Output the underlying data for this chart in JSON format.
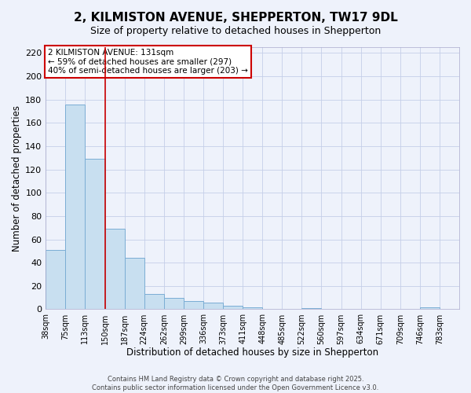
{
  "title": "2, KILMISTON AVENUE, SHEPPERTON, TW17 9DL",
  "subtitle": "Size of property relative to detached houses in Shepperton",
  "xlabel": "Distribution of detached houses by size in Shepperton",
  "ylabel": "Number of detached properties",
  "bar_values": [
    51,
    176,
    129,
    69,
    44,
    13,
    10,
    7,
    6,
    3,
    2,
    0,
    0,
    1,
    0,
    0,
    0,
    0,
    0,
    2,
    0
  ],
  "tick_labels": [
    "38sqm",
    "75sqm",
    "113sqm",
    "150sqm",
    "187sqm",
    "224sqm",
    "262sqm",
    "299sqm",
    "336sqm",
    "373sqm",
    "411sqm",
    "448sqm",
    "485sqm",
    "522sqm",
    "560sqm",
    "597sqm",
    "634sqm",
    "671sqm",
    "709sqm",
    "746sqm",
    "783sqm"
  ],
  "bar_color": "#c8dff0",
  "bar_edge_color": "#7badd4",
  "vline_x_index": 3,
  "vline_color": "#cc0000",
  "ylim": [
    0,
    225
  ],
  "yticks": [
    0,
    20,
    40,
    60,
    80,
    100,
    120,
    140,
    160,
    180,
    200,
    220
  ],
  "annotation_title": "2 KILMISTON AVENUE: 131sqm",
  "annotation_line1": "← 59% of detached houses are smaller (297)",
  "annotation_line2": "40% of semi-detached houses are larger (203) →",
  "footer1": "Contains HM Land Registry data © Crown copyright and database right 2025.",
  "footer2": "Contains public sector information licensed under the Open Government Licence v3.0.",
  "bg_color": "#eef2fb",
  "grid_color": "#c5cfe8"
}
